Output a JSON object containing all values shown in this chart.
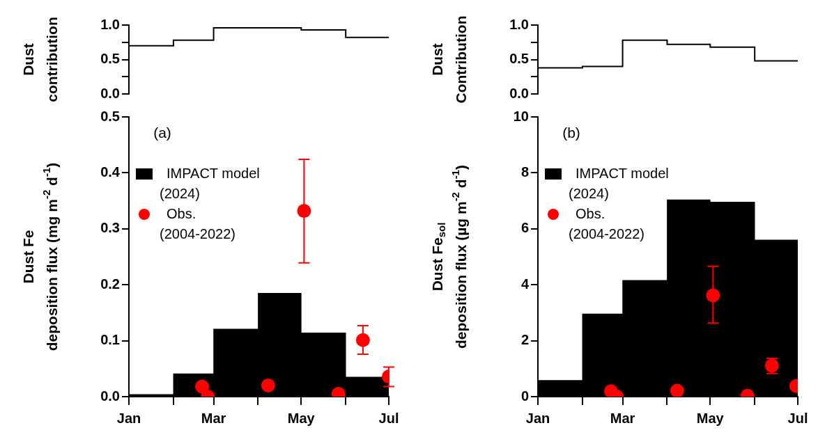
{
  "chart_data": [
    {
      "type": "step",
      "ylabel": "Dust\ncontribution",
      "x": [
        "--01-01",
        "--02-01",
        "--03-01",
        "--04-01",
        "--05-01",
        "--06-01",
        "--07-01"
      ],
      "values": [
        0.7,
        0.78,
        0.96,
        0.96,
        0.93,
        0.82,
        0.82
      ],
      "color": "#000000",
      "xlim": [
        "--01-01",
        "--07-01"
      ],
      "ylim": [
        0,
        1
      ],
      "yticks": [
        {
          "value": 0,
          "label": "0.0"
        },
        {
          "value": 0.25,
          "label": null
        },
        {
          "value": 0.5,
          "label": "0.5"
        },
        {
          "value": 0.75,
          "label": null
        },
        {
          "value": 1,
          "label": "1.0"
        }
      ],
      "tick_labels": "y"
    },
    {
      "type": "step",
      "ylabel": "Dust\nContribution",
      "x": [
        "--01-01",
        "--02-01",
        "--03-01",
        "--04-01",
        "--05-01",
        "--06-01",
        "--07-01"
      ],
      "values": [
        0.38,
        0.4,
        0.78,
        0.72,
        0.68,
        0.48,
        0.48
      ],
      "color": "#000000",
      "xlim": [
        "--01-01",
        "--07-01"
      ],
      "ylim": [
        0,
        1
      ],
      "yticks": [
        {
          "value": 0,
          "label": "0.0"
        },
        {
          "value": 0.25,
          "label": null
        },
        {
          "value": 0.5,
          "label": "0.5"
        },
        {
          "value": 0.75,
          "label": null
        },
        {
          "value": 1,
          "label": "1.0"
        }
      ],
      "tick_labels": "y"
    },
    {
      "type": "histogram",
      "ylabel": "Dust Fe\ndeposition flux (mg m$^{-2}$ d$^{-1}$)",
      "annotations": [
        "(a)"
      ],
      "legend": "top left",
      "marker": "circle",
      "xlim": [
        "--01-01",
        "--07-01"
      ],
      "xticks": [
        {
          "value": "--01-01",
          "label": "Jan"
        },
        {
          "value": "--02-01",
          "label": null
        },
        {
          "value": "--03-01",
          "label": "Mar"
        },
        {
          "value": "--04-01",
          "label": null
        },
        {
          "value": "--05-01",
          "label": "May"
        },
        {
          "value": "--06-01",
          "label": null
        },
        {
          "value": "--07-01",
          "label": "Jul"
        }
      ],
      "ylim": [
        0,
        0.5
      ],
      "yticks": [
        {
          "value": 0,
          "label": "0.0"
        },
        0.1,
        0.2,
        0.3,
        0.4,
        0.5
      ],
      "series": [
        {
          "name": "IMPACT model\n(2024)",
          "type": "histogram",
          "color": "#000000",
          "bins": [
            "--01-01",
            "--02-01",
            "--03-01",
            "--04-01",
            "--05-01",
            "--06-01",
            "--07-01"
          ],
          "values": [
            0.004,
            0.041,
            0.121,
            0.185,
            0.114,
            0.035
          ]
        },
        {
          "name": "Obs.\n(2004-2022)",
          "type": "scatter",
          "color": "#ff0000",
          "x": [
            "--02-21",
            "--02-25",
            "--04-08",
            "--05-03",
            "--05-27",
            "--06-13",
            "--07-01"
          ],
          "values": [
            0.018,
            0.0,
            0.02,
            0.332,
            0.005,
            0.101,
            0.036
          ],
          "errors": [
            null,
            null,
            null,
            [
              0.239,
              0.424
            ],
            null,
            [
              0.076,
              0.127
            ],
            [
              0.018,
              0.053
            ]
          ]
        }
      ]
    },
    {
      "type": "histogram",
      "ylabel": "Dust Fe$_{sol}$\ndeposition flux (µg m$^{-2}$ d$^{-1}$)",
      "annotations": [
        "(b)"
      ],
      "legend": "top left",
      "marker": "circle",
      "xlim": [
        "--01-01",
        "--07-01"
      ],
      "xticks": [
        {
          "value": "--01-01",
          "label": "Jan"
        },
        {
          "value": "--02-01",
          "label": null
        },
        {
          "value": "--03-01",
          "label": "Mar"
        },
        {
          "value": "--04-01",
          "label": null
        },
        {
          "value": "--05-01",
          "label": "May"
        },
        {
          "value": "--06-01",
          "label": null
        },
        {
          "value": "--07-01",
          "label": "Jul"
        }
      ],
      "ylim": [
        0,
        10
      ],
      "yticks": [
        0,
        2,
        4,
        6,
        8,
        10
      ],
      "series": [
        {
          "name": "IMPACT model\n(2024)",
          "type": "histogram",
          "color": "#000000",
          "bins": [
            "--01-01",
            "--02-01",
            "--03-01",
            "--04-01",
            "--05-01",
            "--06-01",
            "--07-01"
          ],
          "values": [
            0.58,
            2.96,
            4.16,
            7.04,
            6.96,
            5.6
          ]
        },
        {
          "name": "Obs.\n(2004-2022)",
          "type": "scatter",
          "color": "#ff0000",
          "x": [
            "--02-21",
            "--02-25",
            "--04-08",
            "--05-03",
            "--05-27",
            "--06-13",
            "--06-30"
          ],
          "values": [
            0.19,
            0.0,
            0.21,
            3.62,
            0.03,
            1.11,
            0.38
          ],
          "errors": [
            null,
            null,
            null,
            [
              2.63,
              4.66
            ],
            null,
            [
              0.83,
              1.37
            ],
            null
          ]
        }
      ]
    }
  ]
}
